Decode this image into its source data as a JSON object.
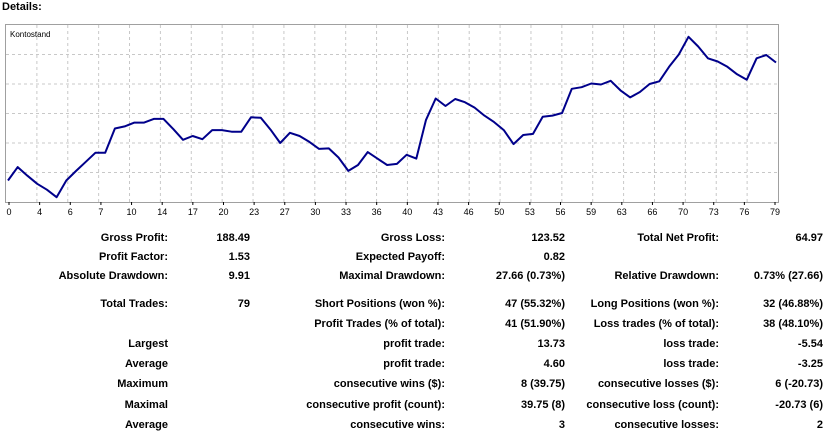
{
  "title": "Details:",
  "chart_data": {
    "type": "line",
    "title": "",
    "legend": "Kontostand",
    "x_ticks": [
      "0",
      "4",
      "6",
      "7",
      "10",
      "14",
      "17",
      "20",
      "23",
      "27",
      "30",
      "33",
      "36",
      "40",
      "43",
      "46",
      "50",
      "53",
      "56",
      "59",
      "63",
      "66",
      "70",
      "73",
      "76",
      "79"
    ],
    "x": [
      0,
      1,
      2,
      3,
      4,
      5,
      6,
      7,
      8,
      9,
      10,
      11,
      12,
      13,
      14,
      15,
      16,
      17,
      18,
      19,
      20,
      21,
      22,
      23,
      24,
      25,
      26,
      27,
      28,
      29,
      30,
      31,
      32,
      33,
      34,
      35,
      36,
      37,
      38,
      39,
      40,
      41,
      42,
      43,
      44,
      45,
      46,
      47,
      48,
      49,
      50,
      51,
      52,
      53,
      54,
      55,
      56,
      57,
      58,
      59,
      60,
      61,
      62,
      63,
      64,
      65,
      66,
      67,
      68,
      69,
      70,
      71,
      72,
      73,
      74,
      75,
      76,
      77,
      78,
      79
    ],
    "values": [
      0,
      5,
      1.8,
      -1.2,
      -3.4,
      -6.2,
      0,
      3.6,
      7,
      10.4,
      10.4,
      19.4,
      20.2,
      21.6,
      21.6,
      23,
      23,
      19.2,
      15.2,
      16.6,
      15.4,
      18.8,
      18.8,
      18.2,
      18.2,
      23.6,
      23.4,
      19,
      14,
      17.8,
      16.6,
      14.4,
      11.8,
      12,
      8.6,
      3.6,
      5.8,
      10.6,
      8.2,
      5.8,
      6.2,
      9.6,
      8.2,
      22.6,
      30.6,
      27.8,
      30.4,
      29.2,
      27.2,
      24.2,
      21.8,
      18.8,
      13.6,
      17,
      17.4,
      23.8,
      24.2,
      25.2,
      34.2,
      34.8,
      36.2,
      35.8,
      37.2,
      33.6,
      31,
      33,
      36,
      37,
      42.4,
      47,
      53.6,
      50,
      45.6,
      44.4,
      42.4,
      39.6,
      37.6,
      45.6,
      46.8,
      44
    ],
    "grid": true
  },
  "stats": {
    "gross_profit_label": "Gross Profit:",
    "gross_profit": "188.49",
    "gross_loss_label": "Gross Loss:",
    "gross_loss": "123.52",
    "total_net_profit_label": "Total Net Profit:",
    "total_net_profit": "64.97",
    "profit_factor_label": "Profit Factor:",
    "profit_factor": "1.53",
    "expected_payoff_label": "Expected Payoff:",
    "expected_payoff": "0.82",
    "absolute_drawdown_label": "Absolute Drawdown:",
    "absolute_drawdown": "9.91",
    "maximal_drawdown_label": "Maximal Drawdown:",
    "maximal_drawdown": "27.66 (0.73%)",
    "relative_drawdown_label": "Relative Drawdown:",
    "relative_drawdown": "0.73% (27.66)",
    "total_trades_label": "Total Trades:",
    "total_trades": "79",
    "short_positions_label": "Short Positions (won %):",
    "short_positions": "47 (55.32%)",
    "long_positions_label": "Long Positions (won %):",
    "long_positions": "32 (46.88%)",
    "profit_trades_label": "Profit Trades (% of total):",
    "profit_trades": "41 (51.90%)",
    "loss_trades_label": "Loss trades (% of total):",
    "loss_trades": "38 (48.10%)",
    "largest_label": "Largest",
    "largest_profit_label": "profit trade:",
    "largest_profit": "13.73",
    "largest_loss_label": "loss trade:",
    "largest_loss": "-5.54",
    "average_label": "Average",
    "average_profit_label": "profit trade:",
    "average_profit": "4.60",
    "average_loss_label": "loss trade:",
    "average_loss": "-3.25",
    "maximum_label": "Maximum",
    "max_consec_wins_label": "consecutive wins ($):",
    "max_consec_wins": "8 (39.75)",
    "max_consec_losses_label": "consecutive losses ($):",
    "max_consec_losses": "6 (-20.73)",
    "maximal_label": "Maximal",
    "maximal_consec_profit_label": "consecutive profit (count):",
    "maximal_consec_profit": "39.75 (8)",
    "maximal_consec_loss_label": "consecutive loss (count):",
    "maximal_consec_loss": "-20.73 (6)",
    "average2_label": "Average",
    "avg_consec_wins_label": "consecutive wins:",
    "avg_consec_wins": "3",
    "avg_consec_losses_label": "consecutive losses:",
    "avg_consec_losses": "2"
  }
}
